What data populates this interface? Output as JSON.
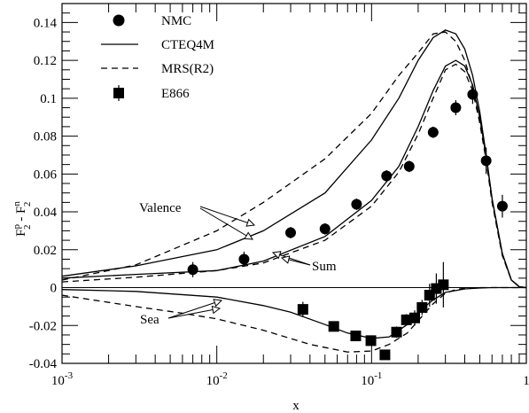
{
  "chart_data": {
    "type": "line",
    "title": "",
    "xlabel": "x",
    "ylabel_main": "F",
    "ylabel_sup1": "p",
    "ylabel_sub1": "2",
    "ylabel_mid": " - F",
    "ylabel_sup2": "n",
    "ylabel_sub2": "2",
    "x_scale": "log",
    "xlim": [
      0.001,
      1
    ],
    "ylim": [
      -0.04,
      0.15
    ],
    "grid": false,
    "legend_position": "top-left",
    "x_ticks": [
      {
        "value": 0.001,
        "base": "10",
        "exp": "-3"
      },
      {
        "value": 0.01,
        "base": "10",
        "exp": "-2"
      },
      {
        "value": 0.1,
        "base": "10",
        "exp": "-1"
      },
      {
        "value": 1,
        "base": "1",
        "exp": ""
      }
    ],
    "y_ticks": [
      {
        "value": 0.14,
        "label": "0.14"
      },
      {
        "value": 0.12,
        "label": "0.12"
      },
      {
        "value": 0.1,
        "label": "0.1"
      },
      {
        "value": 0.08,
        "label": "0.08"
      },
      {
        "value": 0.06,
        "label": "0.06"
      },
      {
        "value": 0.04,
        "label": "0.04"
      },
      {
        "value": 0.02,
        "label": "0.02"
      },
      {
        "value": 0,
        "label": "0"
      },
      {
        "value": -0.02,
        "label": "-0.02"
      },
      {
        "value": -0.04,
        "label": "-0.04"
      }
    ],
    "legend": [
      {
        "label": "NMC",
        "marker": "circle"
      },
      {
        "label": "CTEQ4M",
        "marker": "solid-line"
      },
      {
        "label": "MRS(R2)",
        "marker": "dashed-line"
      },
      {
        "label": "E866",
        "marker": "square"
      }
    ],
    "annotations": {
      "valence": "Valence",
      "sum": "Sum",
      "sea": "Sea"
    },
    "series": [
      {
        "name": "NMC",
        "kind": "points",
        "marker": "circle",
        "points": [
          {
            "x": 0.007,
            "y": 0.0095,
            "err": 0.004
          },
          {
            "x": 0.015,
            "y": 0.015,
            "err": 0.004
          },
          {
            "x": 0.03,
            "y": 0.029,
            "err": 0.003
          },
          {
            "x": 0.05,
            "y": 0.031,
            "err": 0.003
          },
          {
            "x": 0.08,
            "y": 0.044,
            "err": 0.003
          },
          {
            "x": 0.125,
            "y": 0.059,
            "err": 0.003
          },
          {
            "x": 0.175,
            "y": 0.064,
            "err": 0.003
          },
          {
            "x": 0.25,
            "y": 0.082,
            "err": 0.003
          },
          {
            "x": 0.35,
            "y": 0.095,
            "err": 0.004
          },
          {
            "x": 0.45,
            "y": 0.102,
            "err": 0.005
          },
          {
            "x": 0.55,
            "y": 0.067,
            "err": 0.007
          },
          {
            "x": 0.7,
            "y": 0.043,
            "err": 0.006
          }
        ]
      },
      {
        "name": "E866",
        "kind": "points",
        "marker": "square",
        "points": [
          {
            "x": 0.036,
            "y": -0.0115,
            "err": 0.004
          },
          {
            "x": 0.057,
            "y": -0.0205,
            "err": 0.002
          },
          {
            "x": 0.079,
            "y": -0.0255,
            "err": 0.002
          },
          {
            "x": 0.099,
            "y": -0.028,
            "err": 0.002
          },
          {
            "x": 0.122,
            "y": -0.0355,
            "err": 0.002
          },
          {
            "x": 0.145,
            "y": -0.0235,
            "err": 0.003
          },
          {
            "x": 0.168,
            "y": -0.017,
            "err": 0.003
          },
          {
            "x": 0.19,
            "y": -0.016,
            "err": 0.004
          },
          {
            "x": 0.212,
            "y": -0.0105,
            "err": 0.004
          },
          {
            "x": 0.237,
            "y": -0.004,
            "err": 0.006
          },
          {
            "x": 0.262,
            "y": -0.0005,
            "err": 0.008
          },
          {
            "x": 0.291,
            "y": 0.0015,
            "err": 0.012
          }
        ]
      },
      {
        "name": "CTEQ4M",
        "kind": "line",
        "dash": "solid",
        "curves": [
          {
            "label": "Valence",
            "x": [
              0.001,
              0.003,
              0.01,
              0.02,
              0.05,
              0.1,
              0.15,
              0.2,
              0.25,
              0.3,
              0.35,
              0.4,
              0.45,
              0.5,
              0.55,
              0.6,
              0.7,
              0.8,
              0.9,
              1.0
            ],
            "y": [
              0.006,
              0.0115,
              0.02,
              0.03,
              0.05,
              0.078,
              0.1,
              0.12,
              0.132,
              0.136,
              0.134,
              0.126,
              0.112,
              0.093,
              0.07,
              0.047,
              0.018,
              0.004,
              0.0005,
              0
            ]
          },
          {
            "label": "Sum",
            "x": [
              0.001,
              0.003,
              0.01,
              0.02,
              0.05,
              0.1,
              0.15,
              0.2,
              0.25,
              0.3,
              0.35,
              0.4,
              0.45,
              0.5,
              0.55,
              0.6,
              0.7,
              0.8,
              0.9,
              1.0
            ],
            "y": [
              0.005,
              0.007,
              0.009,
              0.014,
              0.027,
              0.046,
              0.064,
              0.085,
              0.104,
              0.117,
              0.12,
              0.117,
              0.107,
              0.09,
              0.069,
              0.047,
              0.018,
              0.004,
              0.0005,
              0
            ]
          },
          {
            "label": "Sea",
            "x": [
              0.001,
              0.003,
              0.01,
              0.02,
              0.03,
              0.05,
              0.07,
              0.1,
              0.13,
              0.17,
              0.2,
              0.25,
              0.3,
              0.4,
              0.5,
              0.6,
              0.8,
              1.0
            ],
            "y": [
              -0.001,
              -0.002,
              -0.005,
              -0.0095,
              -0.013,
              -0.0195,
              -0.024,
              -0.0268,
              -0.026,
              -0.0195,
              -0.013,
              -0.0065,
              -0.0025,
              -0.0007,
              -0.0002,
              0,
              0,
              0
            ]
          }
        ]
      },
      {
        "name": "MRS(R2)",
        "kind": "line",
        "dash": "dashed",
        "curves": [
          {
            "label": "Valence",
            "x": [
              0.001,
              0.003,
              0.01,
              0.02,
              0.05,
              0.1,
              0.15,
              0.2,
              0.25,
              0.3,
              0.35,
              0.4,
              0.45,
              0.5,
              0.55,
              0.6,
              0.7,
              0.8,
              0.9,
              1.0
            ],
            "y": [
              0.004,
              0.012,
              0.03,
              0.045,
              0.068,
              0.092,
              0.112,
              0.124,
              0.134,
              0.135,
              0.13,
              0.12,
              0.106,
              0.089,
              0.068,
              0.046,
              0.017,
              0.004,
              0.0005,
              0
            ]
          },
          {
            "label": "Sum",
            "x": [
              0.001,
              0.003,
              0.01,
              0.02,
              0.05,
              0.1,
              0.15,
              0.2,
              0.25,
              0.3,
              0.35,
              0.4,
              0.45,
              0.5,
              0.55,
              0.6,
              0.7,
              0.8,
              0.9,
              1.0
            ],
            "y": [
              0.003,
              0.0055,
              0.009,
              0.013,
              0.025,
              0.043,
              0.061,
              0.081,
              0.1,
              0.115,
              0.118,
              0.114,
              0.104,
              0.087,
              0.067,
              0.045,
              0.017,
              0.004,
              0.0005,
              0
            ]
          },
          {
            "label": "Sea",
            "x": [
              0.001,
              0.003,
              0.006,
              0.01,
              0.02,
              0.04,
              0.07,
              0.1,
              0.13,
              0.17,
              0.2,
              0.25,
              0.3,
              0.35,
              0.4,
              0.5,
              0.6,
              0.8,
              1.0
            ],
            "y": [
              -0.004,
              -0.01,
              -0.0135,
              -0.0165,
              -0.0225,
              -0.03,
              -0.034,
              -0.0335,
              -0.03,
              -0.024,
              -0.0175,
              -0.0085,
              -0.003,
              -0.001,
              -0.0003,
              0,
              0,
              0,
              0
            ]
          }
        ]
      }
    ]
  }
}
